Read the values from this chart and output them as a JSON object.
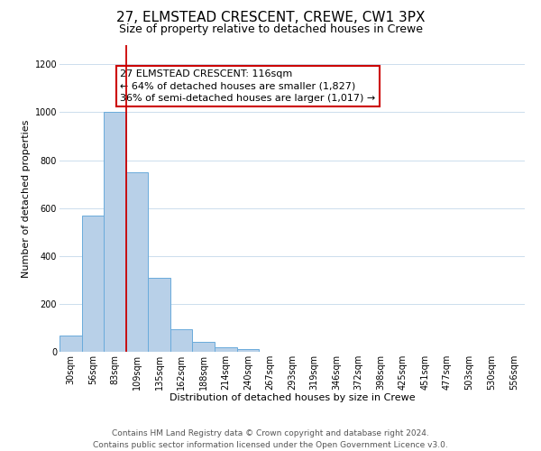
{
  "title_line1": "27, ELMSTEAD CRESCENT, CREWE, CW1 3PX",
  "title_line2": "Size of property relative to detached houses in Crewe",
  "xlabel": "Distribution of detached houses by size in Crewe",
  "ylabel": "Number of detached properties",
  "bar_values": [
    68,
    570,
    1000,
    748,
    310,
    93,
    40,
    18,
    10,
    0,
    0,
    0,
    0,
    0,
    0,
    0,
    0,
    0,
    0,
    0,
    0
  ],
  "bin_labels": [
    "30sqm",
    "56sqm",
    "83sqm",
    "109sqm",
    "135sqm",
    "162sqm",
    "188sqm",
    "214sqm",
    "240sqm",
    "267sqm",
    "293sqm",
    "319sqm",
    "346sqm",
    "372sqm",
    "398sqm",
    "425sqm",
    "451sqm",
    "477sqm",
    "503sqm",
    "530sqm",
    "556sqm"
  ],
  "bar_color": "#b8d0e8",
  "bar_edge_color": "#6aabdb",
  "bar_width": 1.0,
  "ylim": [
    0,
    1280
  ],
  "yticks": [
    0,
    200,
    400,
    600,
    800,
    1000,
    1200
  ],
  "property_line_color": "#cc0000",
  "annotation_box_title": "27 ELMSTEAD CRESCENT: 116sqm",
  "annotation_line1": "← 64% of detached houses are smaller (1,827)",
  "annotation_line2": "36% of semi-detached houses are larger (1,017) →",
  "annotation_box_color": "#cc0000",
  "annotation_box_fill": "#ffffff",
  "footer_line1": "Contains HM Land Registry data © Crown copyright and database right 2024.",
  "footer_line2": "Contains public sector information licensed under the Open Government Licence v3.0.",
  "background_color": "#ffffff",
  "grid_color": "#ccdded",
  "title_fontsize": 11,
  "subtitle_fontsize": 9,
  "axis_label_fontsize": 8,
  "tick_fontsize": 7,
  "annotation_fontsize": 8,
  "footer_fontsize": 6.5
}
